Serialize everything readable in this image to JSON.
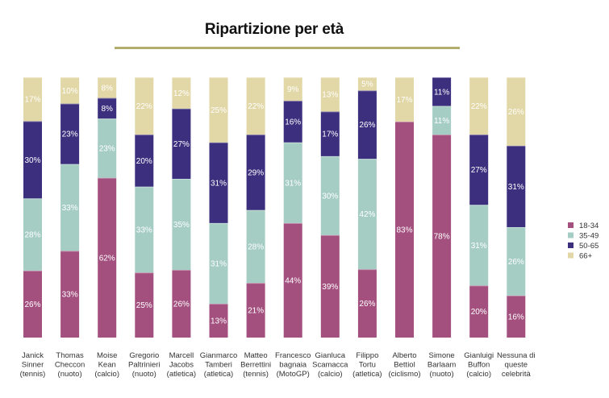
{
  "chart_data": {
    "type": "bar",
    "stacked": "percent",
    "title": "Ripartizione per età",
    "categories": [
      [
        "Janick",
        "Sinner",
        "(tennis)"
      ],
      [
        "Thomas",
        "Checcon",
        "(nuoto)"
      ],
      [
        "Moise",
        "Kean",
        "(calcio)"
      ],
      [
        "Gregorio",
        "Paltrinieri",
        "(nuoto)"
      ],
      [
        "Marcell",
        "Jacobs",
        "(atletica)"
      ],
      [
        "Gianmarco",
        "Tamberi",
        "(atletica)"
      ],
      [
        "Matteo",
        "Berrettini",
        "(tennis)"
      ],
      [
        "Francesco",
        "bagnaia",
        "(MotoGP)"
      ],
      [
        "Gianluca",
        "Scamacca",
        "(calcio)"
      ],
      [
        "Filippo",
        "Tortu",
        "(atletica)"
      ],
      [
        "Alberto",
        "Bettiol",
        "(ciclismo)"
      ],
      [
        "Simone",
        "Barlaam",
        "(nuoto)"
      ],
      [
        "Gianluigi",
        "Buffon",
        "(calcio)"
      ],
      [
        "Nessuna di",
        "queste",
        "celebrità"
      ]
    ],
    "series": [
      {
        "name": "18-34",
        "color": "#a3507f",
        "values": [
          26,
          33,
          62,
          25,
          26,
          13,
          21,
          44,
          39,
          26,
          83,
          78,
          20,
          16
        ]
      },
      {
        "name": "35-49",
        "color": "#a6cdc4",
        "values": [
          28,
          33,
          23,
          33,
          35,
          31,
          28,
          31,
          30,
          42,
          0,
          11,
          31,
          26
        ]
      },
      {
        "name": "50-65",
        "color": "#3b2f7e",
        "values": [
          30,
          23,
          8,
          20,
          27,
          31,
          29,
          16,
          17,
          26,
          0,
          11,
          27,
          31
        ]
      },
      {
        "name": "66+",
        "color": "#e2d7a6",
        "values": [
          17,
          10,
          8,
          22,
          12,
          25,
          22,
          9,
          13,
          5,
          17,
          0,
          22,
          26
        ]
      }
    ],
    "ylim": [
      0,
      100
    ],
    "legend_position": "right"
  }
}
